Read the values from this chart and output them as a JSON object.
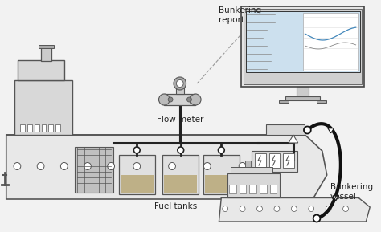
{
  "bg_color": "#f2f2f2",
  "ship_color": "#e8e8e8",
  "ship_color2": "#d8d8d8",
  "ship_outline": "#555555",
  "pipe_color": "#222222",
  "tank_fill": "#b8a878",
  "label_flow_meter": "Flow meter",
  "label_fuel_tanks": "Fuel tanks",
  "label_bunkering_vessel": "Bunkering\nvessel",
  "label_bunkering_report": "Bunkering\nreport",
  "text_color": "#222222",
  "monitor_screen_bg": "#cce0ee",
  "dashed_line_color": "#999999",
  "hose_color": "#111111",
  "panel_color": "#dddddd"
}
